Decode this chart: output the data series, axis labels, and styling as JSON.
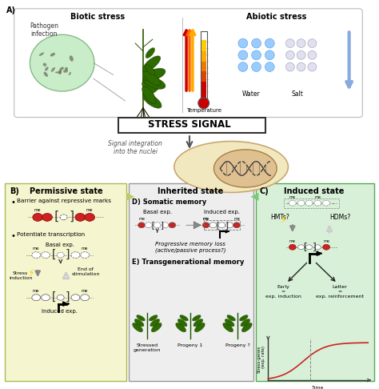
{
  "panel_A_label": "A)",
  "biotic_stress_title": "Biotic stress",
  "biotic_stress_subtitle": "Pathogen\ninfection",
  "abiotic_stress_title": "Abiotic stress",
  "temperature_label": "Temperature",
  "water_label": "Water",
  "salt_label": "Salt",
  "stress_signal_label": "STRESS SIGNAL",
  "signal_integration_label": "Signal integration\ninto the nuclei",
  "panel_B_label": "B)",
  "permissive_state_title": "Permissive state",
  "permissive_bullet1": "Barrier against repressive marks",
  "permissive_bullet2": "Potentiate transcription",
  "basal_exp_label": "Basal exp.",
  "stress_induction_label": "Stress\ninduction",
  "end_stimulation_label": "End of\nstimulation",
  "induced_exp_label_B": "Induced exp.",
  "inherited_state_title": "Inherited state",
  "panel_D_label": "D) Somatic memory",
  "basal_exp_D_label": "Basal exp.",
  "induced_exp_D_label": "Induced exp.",
  "progressive_memory_label": "Progressive memory loss\n(active/passive process?)",
  "panel_E_label": "E) Transgenerational memory",
  "stressed_gen_label": "Stressed\ngeneration",
  "progeny1_label": "Progeny 1",
  "progeny2_label": "Progeny ?",
  "panel_C_label": "C)",
  "induced_state_title": "Induced state",
  "HMTs_label": "HMTs?",
  "HDMs_label": "HDMs?",
  "early_label": "Early\n=\nexp. induction",
  "latter_label": "Latter\n=\nexp. reinforcement",
  "stress_genes_label": "Stress-genes\n(exp. rate)",
  "time_label": "Time",
  "bg_top": "#ffffff",
  "bg_B": "#f5f5d0",
  "bg_C": "#d8f0d8",
  "bg_D": "#eeeeee",
  "nuclei_color": "#e8d5a0",
  "nucleosome_red": "#cc2222",
  "curve_color": "#cc2222"
}
